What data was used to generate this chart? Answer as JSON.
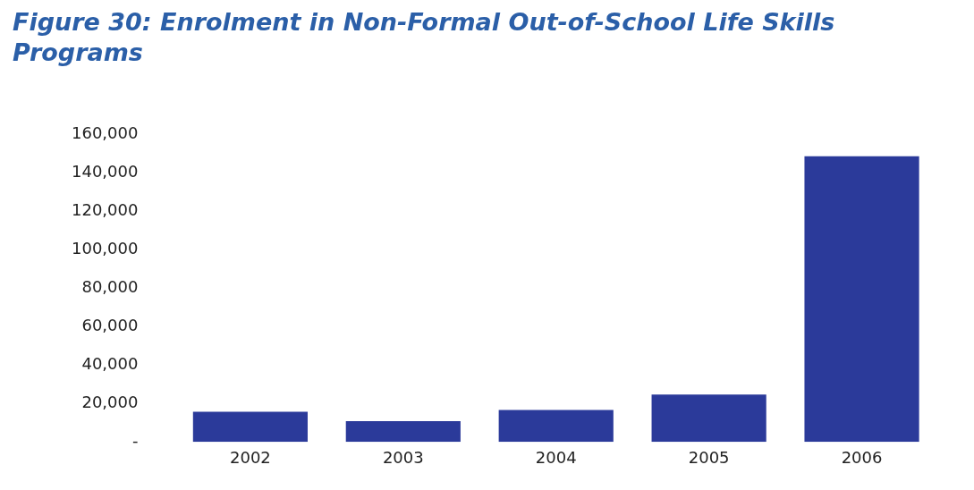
{
  "chart_data": {
    "type": "bar",
    "title": "Figure 30: Enrolment in Non-Formal Out-of-School Life Skills Programs",
    "categories": [
      "2002",
      "2003",
      "2004",
      "2005",
      "2006"
    ],
    "values": [
      15700,
      10800,
      16600,
      24700,
      148800
    ],
    "color": "#2b3a9a",
    "ylim": [
      0,
      160000
    ],
    "yticks": [
      {
        "value": 0,
        "label": "-"
      },
      {
        "value": 20000,
        "label": "20,000"
      },
      {
        "value": 40000,
        "label": "40,000"
      },
      {
        "value": 60000,
        "label": "60,000"
      },
      {
        "value": 80000,
        "label": "80,000"
      },
      {
        "value": 100000,
        "label": "100,000"
      },
      {
        "value": 120000,
        "label": "120,000"
      },
      {
        "value": 140000,
        "label": "140,000"
      },
      {
        "value": 160000,
        "label": "160,000"
      }
    ],
    "grid": false,
    "legend": false
  }
}
